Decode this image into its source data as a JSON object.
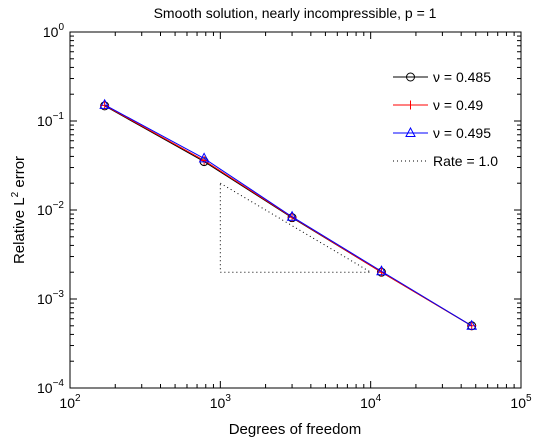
{
  "chart_data": {
    "type": "line",
    "title": "Smooth solution, nearly incompressible, p = 1",
    "xlabel": "Degrees of freedom",
    "ylabel": "Relative L",
    "ylabel_sup": "2",
    "ylabel_tail": " error",
    "xscale": "log",
    "yscale": "log",
    "xlim": [
      100,
      100000
    ],
    "ylim": [
      0.0001,
      1
    ],
    "grid": false,
    "legend_position": "top-right",
    "x_ticks": [
      {
        "value": 100,
        "base": "10",
        "exp": "2"
      },
      {
        "value": 1000,
        "base": "10",
        "exp": "3"
      },
      {
        "value": 10000,
        "base": "10",
        "exp": "4"
      },
      {
        "value": 100000,
        "base": "10",
        "exp": "5"
      }
    ],
    "y_ticks": [
      {
        "value": 0.0001,
        "base": "10",
        "exp": "−4"
      },
      {
        "value": 0.001,
        "base": "10",
        "exp": "−3"
      },
      {
        "value": 0.01,
        "base": "10",
        "exp": "−2"
      },
      {
        "value": 0.1,
        "base": "10",
        "exp": "−1"
      },
      {
        "value": 1,
        "base": "10",
        "exp": "0"
      }
    ],
    "series": [
      {
        "name": "ν = 0.485",
        "color": "#000000",
        "marker": "circle",
        "x": [
          170,
          780,
          3000,
          11800,
          47000
        ],
        "y": [
          0.148,
          0.035,
          0.0082,
          0.002,
          0.0005
        ]
      },
      {
        "name": "ν = 0.49",
        "color": "#ff0000",
        "marker": "plus",
        "x": [
          170,
          780,
          3000,
          11800,
          47000
        ],
        "y": [
          0.15,
          0.036,
          0.0083,
          0.002,
          0.0005
        ]
      },
      {
        "name": "ν = 0.495",
        "color": "#0000ff",
        "marker": "triangle",
        "x": [
          170,
          780,
          3000,
          11800,
          47000
        ],
        "y": [
          0.152,
          0.038,
          0.0084,
          0.00205,
          0.0005
        ]
      }
    ],
    "rate_triangle": {
      "name": "Rate = 1.0",
      "color": "#000000",
      "style": "dotted",
      "points": [
        [
          1000,
          0.02
        ],
        [
          10000,
          0.002
        ],
        [
          1000,
          0.002
        ]
      ]
    }
  }
}
